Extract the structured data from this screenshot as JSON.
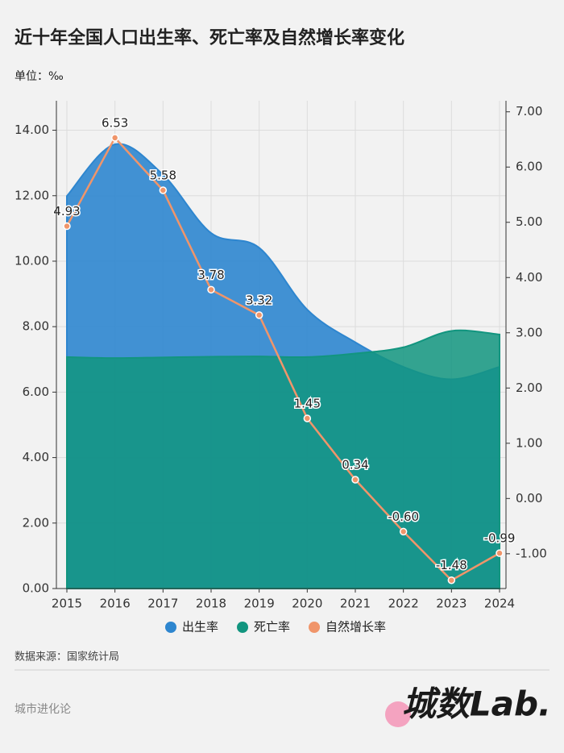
{
  "chart_data": {
    "type": "area-line",
    "title": "近十年全国人口出生率、死亡率及自然增长率变化",
    "subtitle": "单位：‰",
    "source": "数据来源：国家统计局",
    "footer": {
      "brand": "城市进化论",
      "logo": "城数Lab."
    },
    "categories": [
      "2015",
      "2016",
      "2017",
      "2018",
      "2019",
      "2020",
      "2021",
      "2022",
      "2023",
      "2024"
    ],
    "series": [
      {
        "name": "出生率",
        "color": "#2e86cf",
        "type": "area",
        "values": [
          11.99,
          13.57,
          12.64,
          10.86,
          10.41,
          8.52,
          7.52,
          6.77,
          6.39,
          6.77
        ]
      },
      {
        "name": "死亡率",
        "color": "#12957f",
        "type": "area",
        "values": [
          7.07,
          7.04,
          7.06,
          7.08,
          7.09,
          7.07,
          7.18,
          7.37,
          7.87,
          7.76
        ]
      },
      {
        "name": "自然增长率",
        "color": "#f0956a",
        "type": "line",
        "axis": "y2",
        "values": [
          4.93,
          6.53,
          5.58,
          3.78,
          3.32,
          1.45,
          0.34,
          -0.6,
          -1.48,
          -0.99
        ],
        "value_labels": [
          "4.93",
          "6.53",
          "5.58",
          "3.78",
          "3.32",
          "1.45",
          "0.34",
          "-0.60",
          "-1.48",
          "-0.99"
        ]
      }
    ],
    "ylim": [
      0,
      14.9
    ],
    "yticks": [
      {
        "value": 0,
        "label": "0.00"
      },
      {
        "value": 2,
        "label": "2.00"
      },
      {
        "value": 4,
        "label": "4.00"
      },
      {
        "value": 6,
        "label": "6.00"
      },
      {
        "value": 8,
        "label": "8.00"
      },
      {
        "value": 10,
        "label": "10.00"
      },
      {
        "value": 12,
        "label": "12.00"
      },
      {
        "value": 14,
        "label": "14.00"
      }
    ],
    "y2lim": [
      -1.63,
      7.2
    ],
    "y2ticks": [
      {
        "value": -1,
        "label": "-1.00"
      },
      {
        "value": 0,
        "label": "0.00"
      },
      {
        "value": 1,
        "label": "1.00"
      },
      {
        "value": 2,
        "label": "2.00"
      },
      {
        "value": 3,
        "label": "3.00"
      },
      {
        "value": 4,
        "label": "4.00"
      },
      {
        "value": 5,
        "label": "5.00"
      },
      {
        "value": 6,
        "label": "6.00"
      },
      {
        "value": 7,
        "label": "7.00"
      }
    ],
    "grid": true
  }
}
